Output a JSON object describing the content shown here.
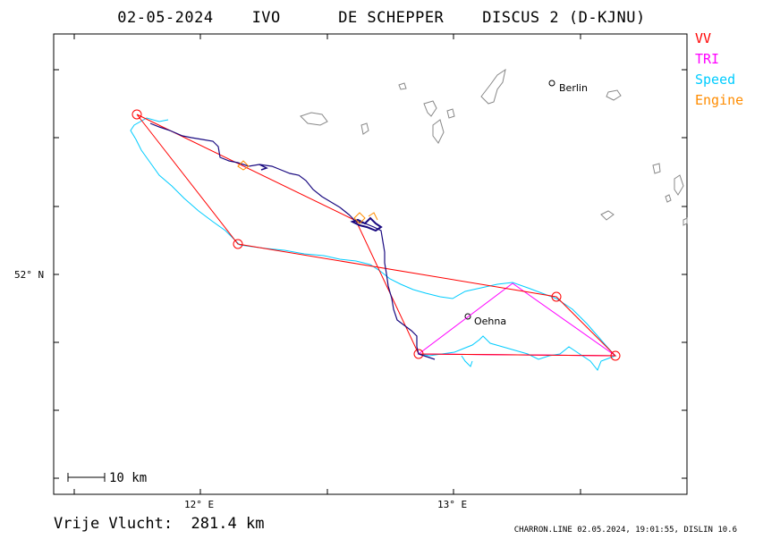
{
  "header": {
    "date": "02-05-2024",
    "club": "IVO",
    "pilot": "DE SCHEPPER",
    "glider": "DISCUS 2 (D-KJNU)"
  },
  "legend": [
    {
      "label": "VV",
      "color": "#ff0000"
    },
    {
      "label": "TRI",
      "color": "#ff00ff"
    },
    {
      "label": "Speed",
      "color": "#00ccff"
    },
    {
      "label": "Engine",
      "color": "#ff8c00"
    }
  ],
  "axes": {
    "x_ticks": [
      "12° E",
      "13° E"
    ],
    "y_ticks": [
      "52° N"
    ]
  },
  "cities": [
    "Berlin",
    "Oehna"
  ],
  "scale_bar": "10 km",
  "footer": {
    "distance_label": "Vrije Vlucht:",
    "distance_value": "281.4 km",
    "software": "CHARRON.LINE 02.05.2024, 19:01:55, DISLIN 10.6"
  },
  "colors": {
    "track": "#1a0a80",
    "water": "#888888"
  }
}
